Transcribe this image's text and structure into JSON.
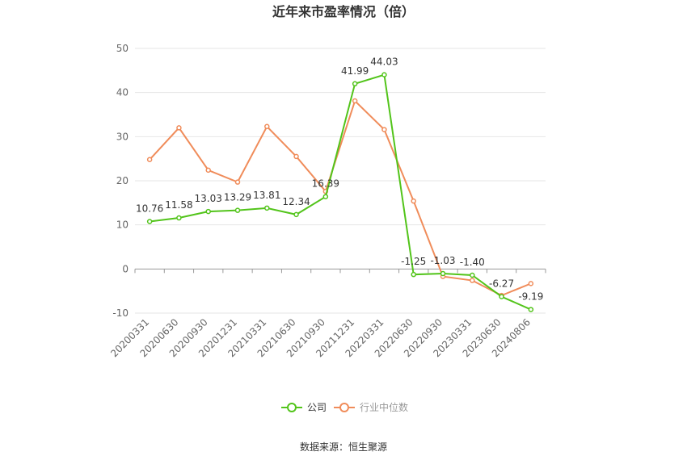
{
  "chart_data": {
    "type": "line",
    "title": "近年来市盈率情况（倍）",
    "categories": [
      "20200331",
      "20200630",
      "20200930",
      "20201231",
      "20210331",
      "20210630",
      "20210930",
      "20211231",
      "20220331",
      "20220630",
      "20220930",
      "20230331",
      "20230630",
      "20240806"
    ],
    "series": [
      {
        "name": "公司",
        "color": "#52c41a",
        "values": [
          10.76,
          11.58,
          13.03,
          13.29,
          13.81,
          12.34,
          16.39,
          41.99,
          44.03,
          -1.25,
          -1.03,
          -1.4,
          -6.27,
          -9.19
        ],
        "labels": [
          "10.76",
          "11.58",
          "13.03",
          "13.29",
          "13.81",
          "12.34",
          "16.39",
          "41.99",
          "44.03",
          "-1.25",
          "-1.03",
          "-1.40",
          "-6.27",
          "-9.19"
        ]
      },
      {
        "name": "行业中位数",
        "color": "#f08c5a",
        "values": [
          24.8,
          32.0,
          22.4,
          19.7,
          32.3,
          25.5,
          17.6,
          38.1,
          31.6,
          15.4,
          -1.7,
          -2.6,
          -6.0,
          -3.3
        ]
      }
    ],
    "ylim": [
      -10,
      50
    ],
    "yticks": [
      "50",
      "40",
      "30",
      "20",
      "10",
      "0",
      "-10"
    ],
    "grid": true,
    "legend_position": "bottom"
  },
  "source_text": "数据来源：恒生聚源"
}
